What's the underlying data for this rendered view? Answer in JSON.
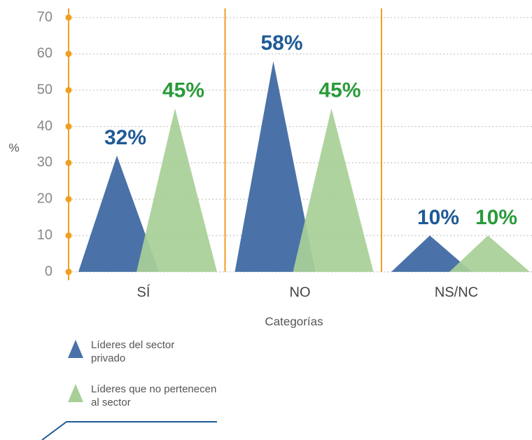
{
  "chart_data": {
    "type": "triangle",
    "categories": [
      "SÍ",
      "NO",
      "NS/NC"
    ],
    "series": [
      {
        "name": "Líderes del sector privado",
        "color": "#4a72a8",
        "label_color": "#1f5a96",
        "values": [
          32,
          58,
          10
        ],
        "value_labels": [
          "32%",
          "58%",
          "10%"
        ]
      },
      {
        "name": "Líderes que no pertenecen al sector",
        "color": "#a8cf97",
        "label_color": "#2a9a3a",
        "values": [
          45,
          45,
          10
        ],
        "value_labels": [
          "45%",
          "45%",
          "10%"
        ]
      }
    ],
    "ylabel": "%",
    "xlabel": "Categorías",
    "ylim": [
      0,
      70
    ],
    "yticks": [
      0,
      10,
      20,
      30,
      40,
      50,
      60,
      70
    ],
    "grid": true
  }
}
